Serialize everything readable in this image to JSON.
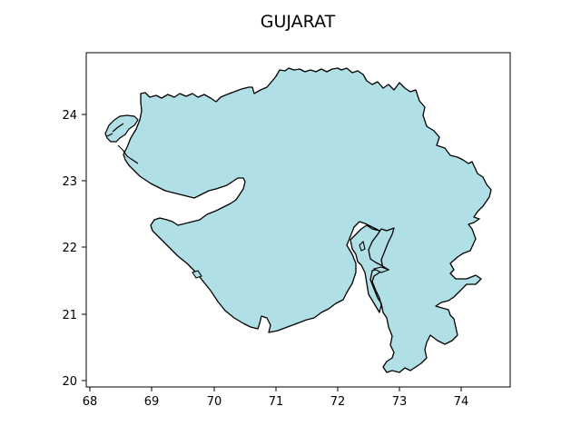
{
  "title": "GUJARAT",
  "map": {
    "region": "Gujarat",
    "fill_color": "#b0dfe5",
    "edge_color": "#000000",
    "xlim": [
      67.95,
      74.8
    ],
    "ylim": [
      19.92,
      24.95
    ],
    "x_ticks": [
      68,
      69,
      70,
      71,
      72,
      73,
      74
    ],
    "y_ticks": [
      20,
      21,
      22,
      23,
      24
    ]
  }
}
